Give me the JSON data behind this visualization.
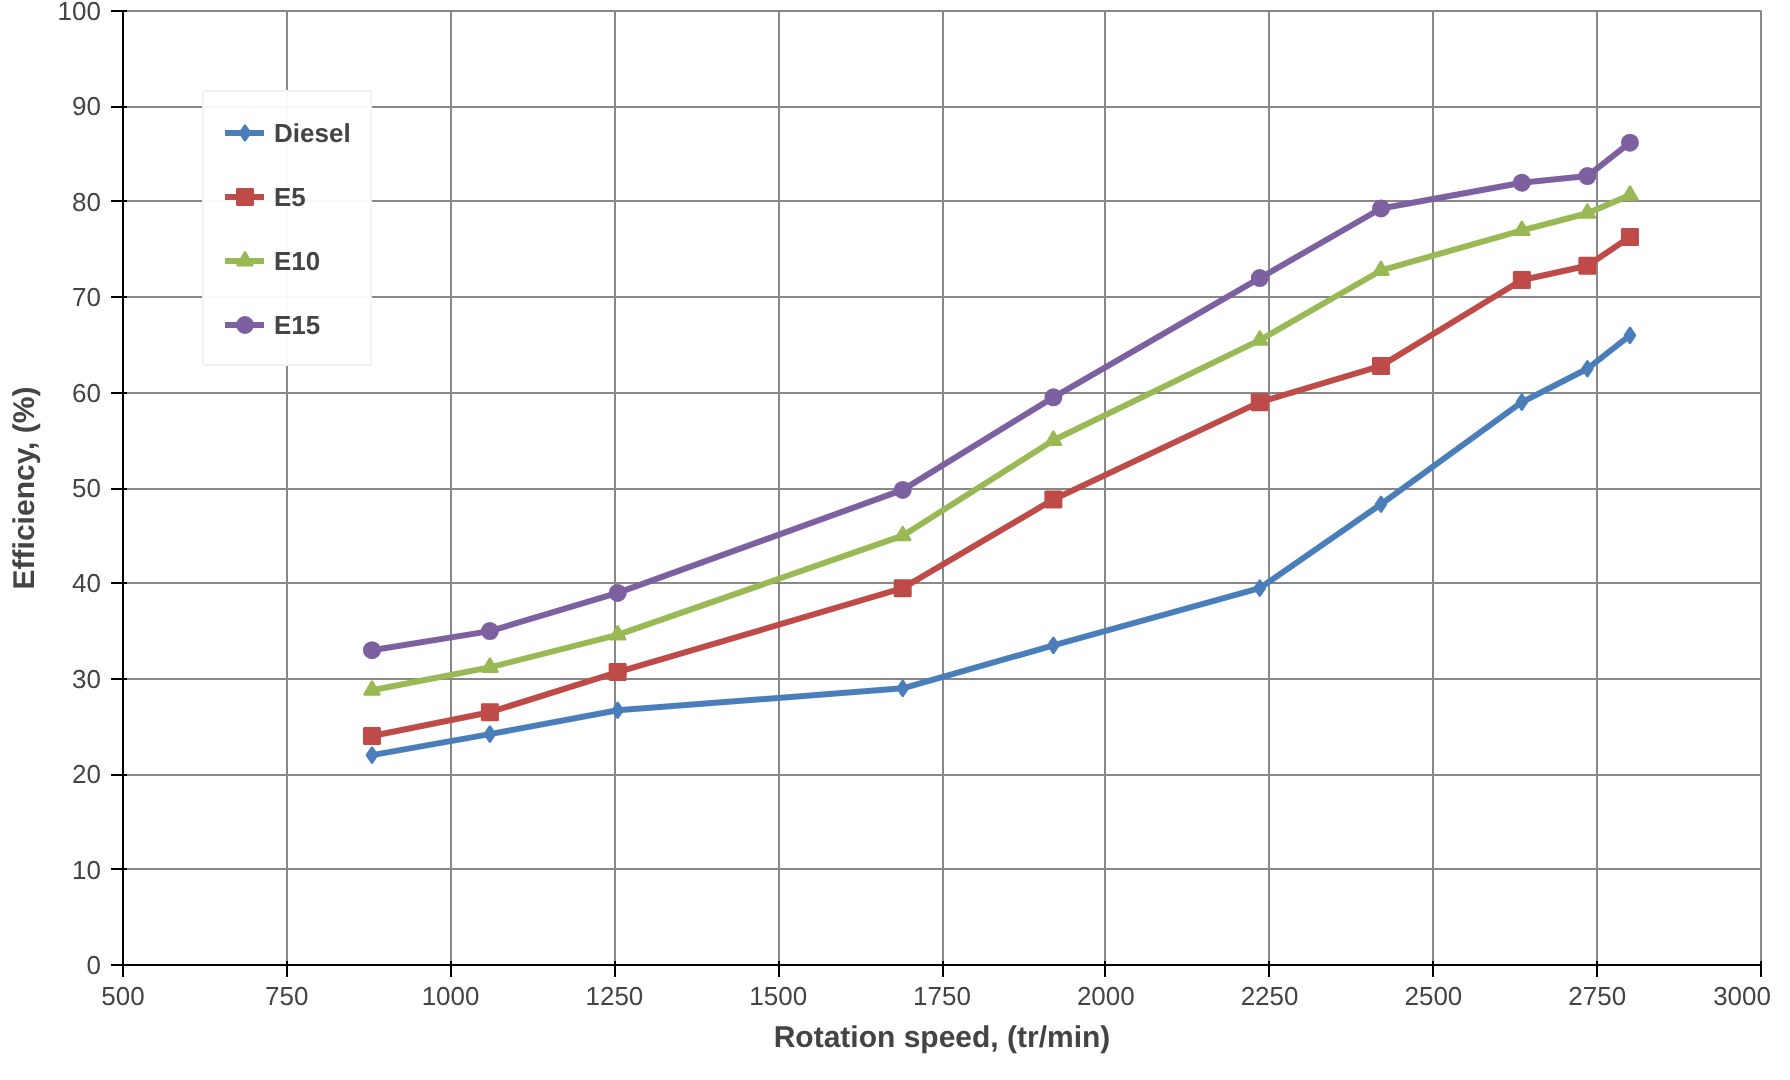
{
  "chart_data": {
    "type": "line",
    "xlabel": "Rotation speed, (tr/min)",
    "ylabel": "Efficiency, (%)",
    "x": [
      880,
      1060,
      1255,
      1690,
      1920,
      2235,
      2420,
      2635,
      2735,
      2800
    ],
    "xlim": [
      500,
      3000
    ],
    "xticks": [
      500,
      750,
      1000,
      1250,
      1500,
      1750,
      2000,
      2250,
      2500,
      2750,
      3000
    ],
    "ylim": [
      0,
      100
    ],
    "yticks": [
      0,
      10,
      20,
      30,
      40,
      50,
      60,
      70,
      80,
      90,
      100
    ],
    "grid": true,
    "legend": "top left",
    "line_style": "solid",
    "series": [
      {
        "name": "Diesel",
        "color": "#4a7ebb",
        "marker": "diamond",
        "values": [
          22,
          24.2,
          26.7,
          29,
          33.5,
          39.5,
          48.3,
          59,
          62.5,
          66
        ]
      },
      {
        "name": "E5",
        "color": "#be4b48",
        "marker": "square",
        "values": [
          24,
          26.5,
          30.7,
          39.5,
          48.8,
          59,
          62.8,
          71.8,
          73.3,
          76.3
        ]
      },
      {
        "name": "E10",
        "color": "#98b954",
        "marker": "triangle",
        "values": [
          28.8,
          31.2,
          34.6,
          45,
          55,
          65.5,
          72.8,
          77,
          78.8,
          80.7
        ]
      },
      {
        "name": "E15",
        "color": "#7d60a0",
        "marker": "circle",
        "values": [
          33,
          35,
          39,
          49.8,
          59.5,
          72,
          79.3,
          82,
          82.7,
          86.2
        ]
      }
    ]
  }
}
